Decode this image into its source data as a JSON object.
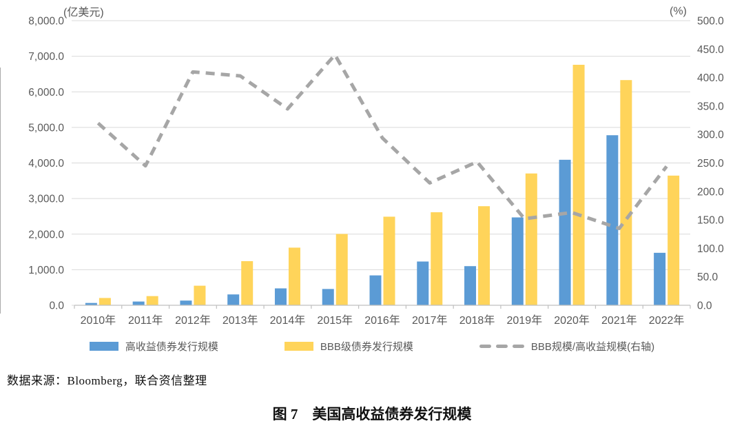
{
  "figure": {
    "source_note": "数据来源：Bloomberg，联合资信整理",
    "caption": "图 7　美国高收益债券发行规模"
  },
  "chart_data": {
    "type": "bar",
    "title": "图 7 美国高收益债券发行规模",
    "categories": [
      "2010年",
      "2011年",
      "2012年",
      "2013年",
      "2014年",
      "2015年",
      "2016年",
      "2017年",
      "2018年",
      "2019年",
      "2020年",
      "2021年",
      "2022年"
    ],
    "series": [
      {
        "key": "high-yield-issuance",
        "name": "高收益债券发行规模",
        "type": "bar",
        "axis": "left",
        "color": "#5B9BD5",
        "values": [
          65,
          105,
          132,
          305,
          475,
          458,
          840,
          1230,
          1100,
          2470,
          4090,
          4780,
          1475
        ]
      },
      {
        "key": "bbb-issuance",
        "name": "BBB级债券发行规模",
        "type": "bar",
        "axis": "left",
        "color": "#FFD45A",
        "values": [
          205,
          258,
          550,
          1240,
          1620,
          2005,
          2490,
          2615,
          2785,
          3705,
          6760,
          6330,
          3645
        ]
      },
      {
        "key": "bbb-to-high-yield-ratio",
        "name": "BBB规模/高收益规模(右轴)",
        "type": "line",
        "axis": "right",
        "color": "#A6A6A6",
        "dashed": true,
        "values": [
          320,
          245,
          410,
          403,
          345,
          440,
          294,
          215,
          252,
          152,
          163,
          135,
          244
        ]
      }
    ],
    "left_axis": {
      "unit": "(亿美元)",
      "min": 0,
      "max": 8000,
      "step": 1000,
      "tick_labels": [
        "8,000.0",
        "7,000.0",
        "6,000.0",
        "5,000.0",
        "4,000.0",
        "3,000.0",
        "2,000.0",
        "1,000.0",
        "0.0"
      ]
    },
    "right_axis": {
      "unit": "(%)",
      "min": 0,
      "max": 500,
      "step": 50,
      "tick_labels": [
        "500.0",
        "450.0",
        "400.0",
        "350.0",
        "300.0",
        "250.0",
        "200.0",
        "150.0",
        "100.0",
        "50.0",
        "0.0"
      ]
    },
    "grid": true,
    "legend_position": "bottom",
    "colors": {
      "grid": "#D9D9D9",
      "axis_line": "#BFBFBF",
      "axis_text": "#595959"
    }
  }
}
